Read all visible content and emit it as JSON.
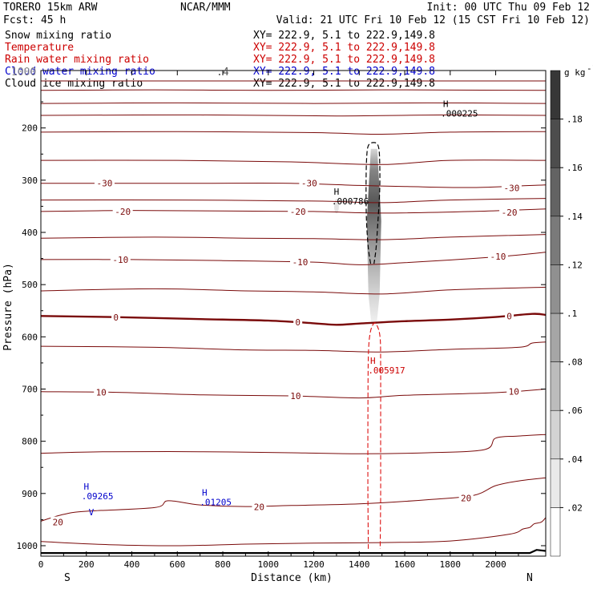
{
  "header": {
    "model": "TORERO  15km ARW",
    "center": "NCAR/MMM",
    "init": "Init: 00 UTC Thu 09 Feb 12",
    "fcst": "Fcst:   45 h",
    "valid": "Valid: 21 UTC Fri 10 Feb 12 (15 CST Fri 10 Feb 12)"
  },
  "fields": [
    {
      "name": "Snow mixing ratio",
      "xy": "XY= 222.9,  5.1 to 222.9,149.8",
      "color": "#000000",
      "xycolor": "#000000"
    },
    {
      "name": "Temperature",
      "xy": "XY= 222.9,  5.1 to 222.9,149.8",
      "color": "#cc0000",
      "xycolor": "#cc0000"
    },
    {
      "name": "Rain water mixing ratio",
      "xy": "XY= 222.9,  5.1 to 222.9,149.8",
      "color": "#cc0000",
      "xycolor": "#cc0000"
    },
    {
      "name": "Cloud water mixing ratio",
      "xy": "XY= 222.9,  5.1 to 222.9,149.8",
      "color": "#0000cc",
      "xycolor": "#0000cc"
    },
    {
      "name": "Cloud ice mixing ratio",
      "xy": "XY= 222.9,  5.1 to 222.9,149.8",
      "color": "#000000",
      "xycolor": "#000000"
    }
  ],
  "overprint": {
    "left": "1000",
    "right": ".4"
  },
  "chart_data": {
    "type": "cross-section contour",
    "xlabel": "Distance (km)",
    "ylabel": "Pressure (hPa)",
    "xlim": [
      0,
      2220
    ],
    "ylim": [
      1020,
      90
    ],
    "x_ticks": [
      0,
      200,
      400,
      600,
      800,
      1000,
      1200,
      1400,
      1600,
      1800,
      2000
    ],
    "y_ticks": [
      200,
      300,
      400,
      500,
      600,
      700,
      800,
      900,
      1000
    ],
    "x_ends": {
      "left": "S",
      "right": "N"
    },
    "colorbar": {
      "unit_label": "g kg",
      "unit_exp": "-1",
      "tick_values": [
        0.02,
        0.04,
        0.06,
        0.08,
        0.1,
        0.12,
        0.14,
        0.16,
        0.18
      ],
      "tick_labels": [
        ".02",
        ".04",
        ".06",
        ".08",
        ".1",
        ".12",
        ".14",
        ".16",
        ".18"
      ],
      "range": [
        0,
        0.2
      ],
      "levels": 10
    },
    "isotherm_labels": [
      {
        "text": "-30",
        "x": 280,
        "p": 306
      },
      {
        "text": "-30",
        "x": 1180,
        "p": 306
      },
      {
        "text": "-30",
        "x": 2070,
        "p": 315
      },
      {
        "text": "-20",
        "x": 360,
        "p": 360
      },
      {
        "text": "-20",
        "x": 1130,
        "p": 360
      },
      {
        "text": "-20",
        "x": 2060,
        "p": 362
      },
      {
        "text": "-10",
        "x": 350,
        "p": 452
      },
      {
        "text": "-10",
        "x": 1140,
        "p": 457
      },
      {
        "text": "-10",
        "x": 2010,
        "p": 446
      },
      {
        "text": "0",
        "x": 330,
        "p": 563
      },
      {
        "text": "0",
        "x": 1130,
        "p": 572
      },
      {
        "text": "0",
        "x": 2060,
        "p": 560
      },
      {
        "text": "10",
        "x": 265,
        "p": 706
      },
      {
        "text": "10",
        "x": 1120,
        "p": 713
      },
      {
        "text": "10",
        "x": 2080,
        "p": 705
      },
      {
        "text": "20",
        "x": 75,
        "p": 955
      },
      {
        "text": "20",
        "x": 960,
        "p": 926
      },
      {
        "text": "20",
        "x": 1870,
        "p": 909
      }
    ],
    "maxima": [
      {
        "letter": "H",
        "value": ".000225",
        "x": 1780,
        "p": 160,
        "color": "#000000"
      },
      {
        "letter": "H",
        "value": ".000786",
        "x": 1300,
        "p": 328,
        "color": "#000000"
      },
      {
        "letter": "H",
        "value": ".005917",
        "x": 1460,
        "p": 652,
        "color": "#cc0000"
      },
      {
        "letter": "H",
        "value": ".09265",
        "x": 200,
        "p": 893,
        "color": "#0000cc"
      },
      {
        "letter": "H",
        "value": ".01205",
        "x": 720,
        "p": 904,
        "color": "#0000cc"
      }
    ],
    "extra_marks": [
      {
        "text": "V",
        "x": 210,
        "p": 942,
        "color": "#0000cc"
      }
    ],
    "isotherms": [
      {
        "level": -60,
        "pts": [
          [
            0,
            110
          ],
          [
            2220,
            110
          ]
        ]
      },
      {
        "level": -55,
        "pts": [
          [
            0,
            128
          ],
          [
            500,
            127
          ],
          [
            1000,
            128
          ],
          [
            1500,
            127
          ],
          [
            2220,
            128
          ]
        ]
      },
      {
        "level": -50,
        "pts": [
          [
            0,
            153
          ],
          [
            600,
            152
          ],
          [
            1200,
            153
          ],
          [
            1700,
            152
          ],
          [
            2220,
            153
          ]
        ]
      },
      {
        "level": -45,
        "pts": [
          [
            0,
            176
          ],
          [
            700,
            175
          ],
          [
            1300,
            177
          ],
          [
            1800,
            175
          ],
          [
            2220,
            176
          ]
        ]
      },
      {
        "level": -40,
        "pts": [
          [
            0,
            208
          ],
          [
            600,
            207
          ],
          [
            1200,
            209
          ],
          [
            1500,
            212
          ],
          [
            1800,
            208
          ],
          [
            2220,
            207
          ]
        ]
      },
      {
        "level": -35,
        "pts": [
          [
            0,
            262
          ],
          [
            600,
            262
          ],
          [
            1100,
            265
          ],
          [
            1500,
            270
          ],
          [
            1800,
            262
          ],
          [
            2220,
            262
          ]
        ]
      },
      {
        "level": -30,
        "pts": [
          [
            0,
            306
          ],
          [
            300,
            306
          ],
          [
            700,
            306
          ],
          [
            1100,
            306
          ],
          [
            1400,
            310
          ],
          [
            1600,
            312
          ],
          [
            1900,
            314
          ],
          [
            2220,
            309
          ]
        ]
      },
      {
        "level": -25,
        "pts": [
          [
            0,
            338
          ],
          [
            600,
            338
          ],
          [
            1200,
            340
          ],
          [
            1500,
            343
          ],
          [
            1800,
            338
          ],
          [
            2220,
            335
          ]
        ]
      },
      {
        "level": -20,
        "pts": [
          [
            0,
            360
          ],
          [
            400,
            358
          ],
          [
            800,
            359
          ],
          [
            1200,
            360
          ],
          [
            1500,
            363
          ],
          [
            1900,
            360
          ],
          [
            2220,
            355
          ]
        ]
      },
      {
        "level": -15,
        "pts": [
          [
            0,
            411
          ],
          [
            500,
            409
          ],
          [
            900,
            411
          ],
          [
            1200,
            412
          ],
          [
            1500,
            414
          ],
          [
            1800,
            409
          ],
          [
            2220,
            404
          ]
        ]
      },
      {
        "level": -10,
        "pts": [
          [
            0,
            452
          ],
          [
            400,
            452
          ],
          [
            800,
            454
          ],
          [
            1200,
            457
          ],
          [
            1400,
            462
          ],
          [
            1600,
            458
          ],
          [
            2000,
            447
          ],
          [
            2220,
            438
          ]
        ]
      },
      {
        "level": -5,
        "pts": [
          [
            0,
            512
          ],
          [
            500,
            508
          ],
          [
            900,
            512
          ],
          [
            1200,
            514
          ],
          [
            1500,
            518
          ],
          [
            1800,
            510
          ],
          [
            2220,
            505
          ]
        ]
      },
      {
        "level": 0,
        "pts": [
          [
            0,
            560
          ],
          [
            300,
            562
          ],
          [
            700,
            566
          ],
          [
            1000,
            569
          ],
          [
            1200,
            574
          ],
          [
            1300,
            577
          ],
          [
            1420,
            574
          ],
          [
            1600,
            570
          ],
          [
            1800,
            567
          ],
          [
            2000,
            562
          ],
          [
            2160,
            556
          ],
          [
            2220,
            558
          ]
        ]
      },
      {
        "level": 5,
        "pts": [
          [
            0,
            618
          ],
          [
            500,
            620
          ],
          [
            900,
            625
          ],
          [
            1200,
            626
          ],
          [
            1500,
            629
          ],
          [
            1800,
            624
          ],
          [
            2100,
            620
          ],
          [
            2160,
            612
          ],
          [
            2220,
            610
          ]
        ]
      },
      {
        "level": 10,
        "pts": [
          [
            0,
            705
          ],
          [
            300,
            706
          ],
          [
            700,
            711
          ],
          [
            1100,
            713
          ],
          [
            1400,
            717
          ],
          [
            1600,
            712
          ],
          [
            2000,
            707
          ],
          [
            2220,
            700
          ]
        ]
      },
      {
        "level": 15,
        "pts": [
          [
            0,
            823
          ],
          [
            300,
            820
          ],
          [
            700,
            820
          ],
          [
            1100,
            822
          ],
          [
            1400,
            824
          ],
          [
            1700,
            822
          ],
          [
            1950,
            816
          ],
          [
            2000,
            794
          ],
          [
            2100,
            790
          ],
          [
            2220,
            787
          ]
        ]
      },
      {
        "level": 20,
        "pts": [
          [
            0,
            953
          ],
          [
            100,
            940
          ],
          [
            200,
            934
          ],
          [
            500,
            927
          ],
          [
            560,
            914
          ],
          [
            700,
            922
          ],
          [
            900,
            925
          ],
          [
            1100,
            923
          ],
          [
            1400,
            920
          ],
          [
            1700,
            912
          ],
          [
            1900,
            904
          ],
          [
            2000,
            885
          ],
          [
            2100,
            876
          ],
          [
            2220,
            870
          ]
        ]
      },
      {
        "level": 25,
        "pts": [
          [
            0,
            992
          ],
          [
            300,
            998
          ],
          [
            600,
            1000
          ],
          [
            900,
            997
          ],
          [
            1200,
            995
          ],
          [
            1500,
            994
          ],
          [
            1800,
            991
          ],
          [
            2060,
            978
          ],
          [
            2120,
            968
          ],
          [
            2150,
            965
          ],
          [
            2170,
            958
          ],
          [
            2200,
            955
          ],
          [
            2220,
            946
          ]
        ]
      }
    ],
    "ground": [
      [
        0,
        1014
      ],
      [
        1500,
        1014
      ],
      [
        2150,
        1014
      ],
      [
        2180,
        1008
      ],
      [
        2220,
        1010
      ]
    ],
    "snow_contour": [
      [
        1450,
        460
      ],
      [
        1440,
        430
      ],
      [
        1432,
        380
      ],
      [
        1430,
        320
      ],
      [
        1432,
        262
      ],
      [
        1440,
        234
      ],
      [
        1465,
        228
      ],
      [
        1484,
        235
      ],
      [
        1490,
        265
      ],
      [
        1490,
        320
      ],
      [
        1482,
        380
      ],
      [
        1474,
        430
      ],
      [
        1465,
        460
      ]
    ],
    "rain_contour": [
      [
        1440,
        1006
      ],
      [
        1438,
        900
      ],
      [
        1438,
        760
      ],
      [
        1440,
        640
      ],
      [
        1448,
        593
      ],
      [
        1465,
        574
      ],
      [
        1480,
        580
      ],
      [
        1492,
        603
      ],
      [
        1494,
        660
      ],
      [
        1494,
        800
      ],
      [
        1494,
        905
      ],
      [
        1492,
        1006
      ]
    ],
    "snow_shading": [
      {
        "x": 1465,
        "p_top": 240,
        "p_bot": 580,
        "max": 0.16
      }
    ],
    "ice_shading": [
      {
        "x": 1300,
        "p": 350,
        "max": 0.03
      }
    ]
  }
}
